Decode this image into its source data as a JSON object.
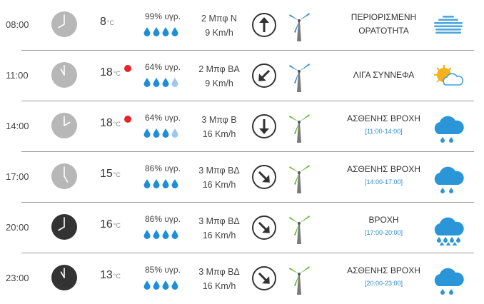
{
  "colors": {
    "drop_full": "#1f8ed8",
    "drop_light": "#9fc7e8",
    "rain_icon": "#2a96d8",
    "mist_icon": "#4fa6dc",
    "sun": "#f5b21b",
    "red_dot": "#e8232a",
    "link_blue": "#2e8bd0"
  },
  "rows": [
    {
      "time": "08:00",
      "clock": "light-clock-icon",
      "temp": "8",
      "unit": "°C",
      "alert_dot": false,
      "humidity": "99% υγρ.",
      "drops_full": 4,
      "wind_beaufort": "2 Μπφ Ν",
      "wind_speed": "9 Km/h",
      "arrow": "up",
      "turbine": "blue",
      "condition": "ΠΕΡΙΟΡΙΣΜΕΝΗ ΟΡΑΤΟΤΗΤΑ",
      "condition_line2": "ΟΡΑΤΟΤΗΤΑ",
      "condition_line1": "ΠΕΡΙΟΡΙΣΜΕΝΗ",
      "range": "",
      "icon": "mist-icon"
    },
    {
      "time": "11:00",
      "clock": "light-clock-icon",
      "temp": "18",
      "unit": "°C",
      "alert_dot": true,
      "humidity": "64% υγρ.",
      "drops_full": 3,
      "wind_beaufort": "2 Μπφ ΒΑ",
      "wind_speed": "9 Km/h",
      "arrow": "down-left",
      "turbine": "blue",
      "condition_line1": "ΛΙΓΑ ΣΥΝΝΕΦΑ",
      "condition_line2": "",
      "range": "",
      "icon": "partly-cloudy-icon"
    },
    {
      "time": "14:00",
      "clock": "light-clock-icon",
      "temp": "18",
      "unit": "°C",
      "alert_dot": true,
      "humidity": "64% υγρ.",
      "drops_full": 3,
      "wind_beaufort": "3 Μπφ Β",
      "wind_speed": "16 Km/h",
      "arrow": "down",
      "turbine": "green",
      "condition_line1": "ΑΣΘΕΝΗΣ ΒΡΟΧΗ",
      "condition_line2": "",
      "range": "[11:00-14:00]",
      "icon": "light-rain-icon"
    },
    {
      "time": "17:00",
      "clock": "light-clock-icon",
      "temp": "15",
      "unit": "°C",
      "alert_dot": false,
      "humidity": "86% υγρ.",
      "drops_full": 4,
      "wind_beaufort": "3 Μπφ ΒΔ",
      "wind_speed": "16 Km/h",
      "arrow": "down-right",
      "turbine": "green",
      "condition_line1": "ΑΣΘΕΝΗΣ ΒΡΟΧΗ",
      "condition_line2": "",
      "range": "[14:00-17:00]",
      "icon": "light-rain-icon"
    },
    {
      "time": "20:00",
      "clock": "dark-clock-icon",
      "temp": "16",
      "unit": "°C",
      "alert_dot": false,
      "humidity": "86% υγρ.",
      "drops_full": 4,
      "wind_beaufort": "3 Μπφ ΒΔ",
      "wind_speed": "16 Km/h",
      "arrow": "down-right",
      "turbine": "green",
      "condition_line1": "ΒΡΟΧΗ",
      "condition_line2": "",
      "range": "[17:00-20:00]",
      "icon": "rain-icon"
    },
    {
      "time": "23:00",
      "clock": "dark-clock-icon",
      "temp": "13",
      "unit": "°C",
      "alert_dot": false,
      "humidity": "85% υγρ.",
      "drops_full": 4,
      "wind_beaufort": "3 Μπφ ΒΔ",
      "wind_speed": "16 Km/h",
      "arrow": "down-right",
      "turbine": "green",
      "condition_line1": "ΑΣΘΕΝΗΣ ΒΡΟΧΗ",
      "condition_line2": "",
      "range": "[20:00-23:00]",
      "icon": "light-rain-icon"
    }
  ]
}
